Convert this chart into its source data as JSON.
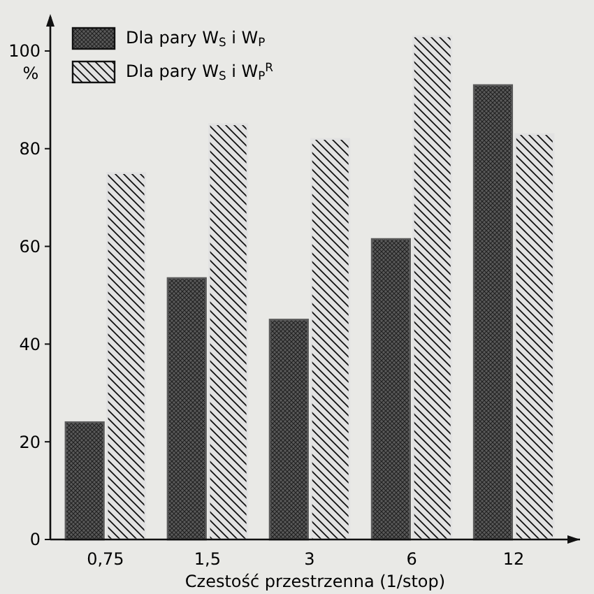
{
  "chart_data": {
    "type": "bar",
    "xlabel": "Czestość przestrzenna (1/stop)",
    "ylabel": "%",
    "categories": [
      "0,75",
      "1,5",
      "3",
      "6",
      "12"
    ],
    "series": [
      {
        "name": "Dla pary W$_{S}$ i W$_{P}$",
        "color": "#5a5a5a",
        "values": [
          24,
          53.5,
          45,
          61.5,
          93
        ]
      },
      {
        "name": "Dla pary W$_{S}$ i W$_{P}$$^{R}$",
        "color": "#e2e2e2",
        "values": [
          75,
          85,
          82,
          103,
          83
        ]
      }
    ],
    "ylim": [
      0,
      107
    ],
    "yticks": [
      0,
      20,
      40,
      60,
      80,
      100
    ],
    "grid": false,
    "legend": "top left"
  }
}
